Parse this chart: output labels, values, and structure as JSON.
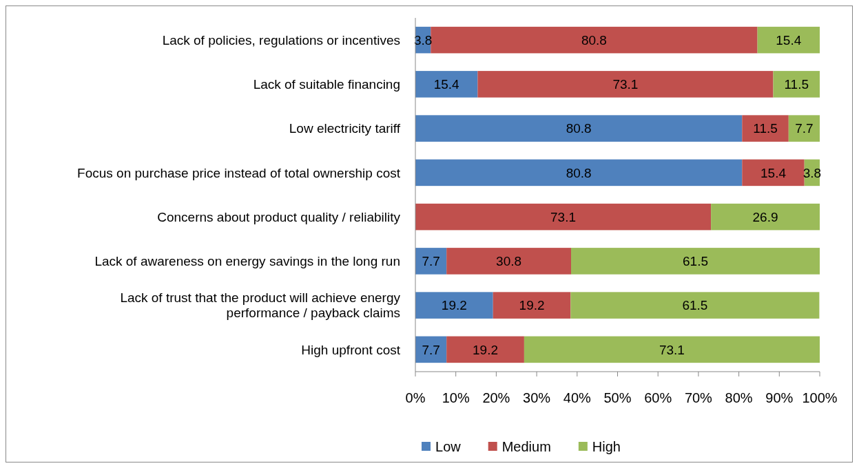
{
  "chart_data": {
    "type": "bar",
    "orientation": "horizontal",
    "stacked": true,
    "categories": [
      "Lack of policies, regulations or incentives",
      "Lack of suitable financing",
      "Low electricity tariff",
      "Focus on purchase price instead of total ownership cost",
      "Concerns about product quality / reliability",
      "Lack of awareness on energy savings in the long run",
      "Lack of trust that the product will achieve energy performance / payback claims",
      "High upfront cost"
    ],
    "series": [
      {
        "name": "Low",
        "color": "#4f81bd",
        "values": [
          3.8,
          15.4,
          80.8,
          80.8,
          0,
          7.7,
          19.2,
          7.7
        ],
        "value_labels": [
          "3.8",
          "15.4",
          "80.8",
          "80.8",
          null,
          "7.7",
          "19.2",
          "7.7"
        ]
      },
      {
        "name": "Medium",
        "color": "#c0504d",
        "values": [
          80.8,
          73.1,
          11.5,
          15.4,
          73.1,
          30.8,
          19.2,
          19.2
        ],
        "value_labels": [
          "80.8",
          "73.1",
          "11.5",
          "15.4",
          "73.1",
          "30.8",
          "19.2",
          "19.2"
        ]
      },
      {
        "name": "High",
        "color": "#9bbb59",
        "values": [
          15.4,
          11.5,
          7.7,
          3.8,
          26.9,
          61.5,
          61.5,
          73.1
        ],
        "value_labels": [
          "15.4",
          "11.5",
          "7.7",
          "3.8",
          "26.9",
          "61.5",
          "61.5",
          "73.1"
        ]
      }
    ],
    "xlim": [
      0,
      100
    ],
    "xticks": [
      {
        "value": 0,
        "label": "0%"
      },
      {
        "value": 10,
        "label": "10%"
      },
      {
        "value": 20,
        "label": "20%"
      },
      {
        "value": 30,
        "label": "30%"
      },
      {
        "value": 40,
        "label": "40%"
      },
      {
        "value": 50,
        "label": "50%"
      },
      {
        "value": 60,
        "label": "60%"
      },
      {
        "value": 70,
        "label": "70%"
      },
      {
        "value": 80,
        "label": "80%"
      },
      {
        "value": 90,
        "label": "90%"
      },
      {
        "value": 100,
        "label": "100%"
      }
    ],
    "legend": "bottom"
  }
}
